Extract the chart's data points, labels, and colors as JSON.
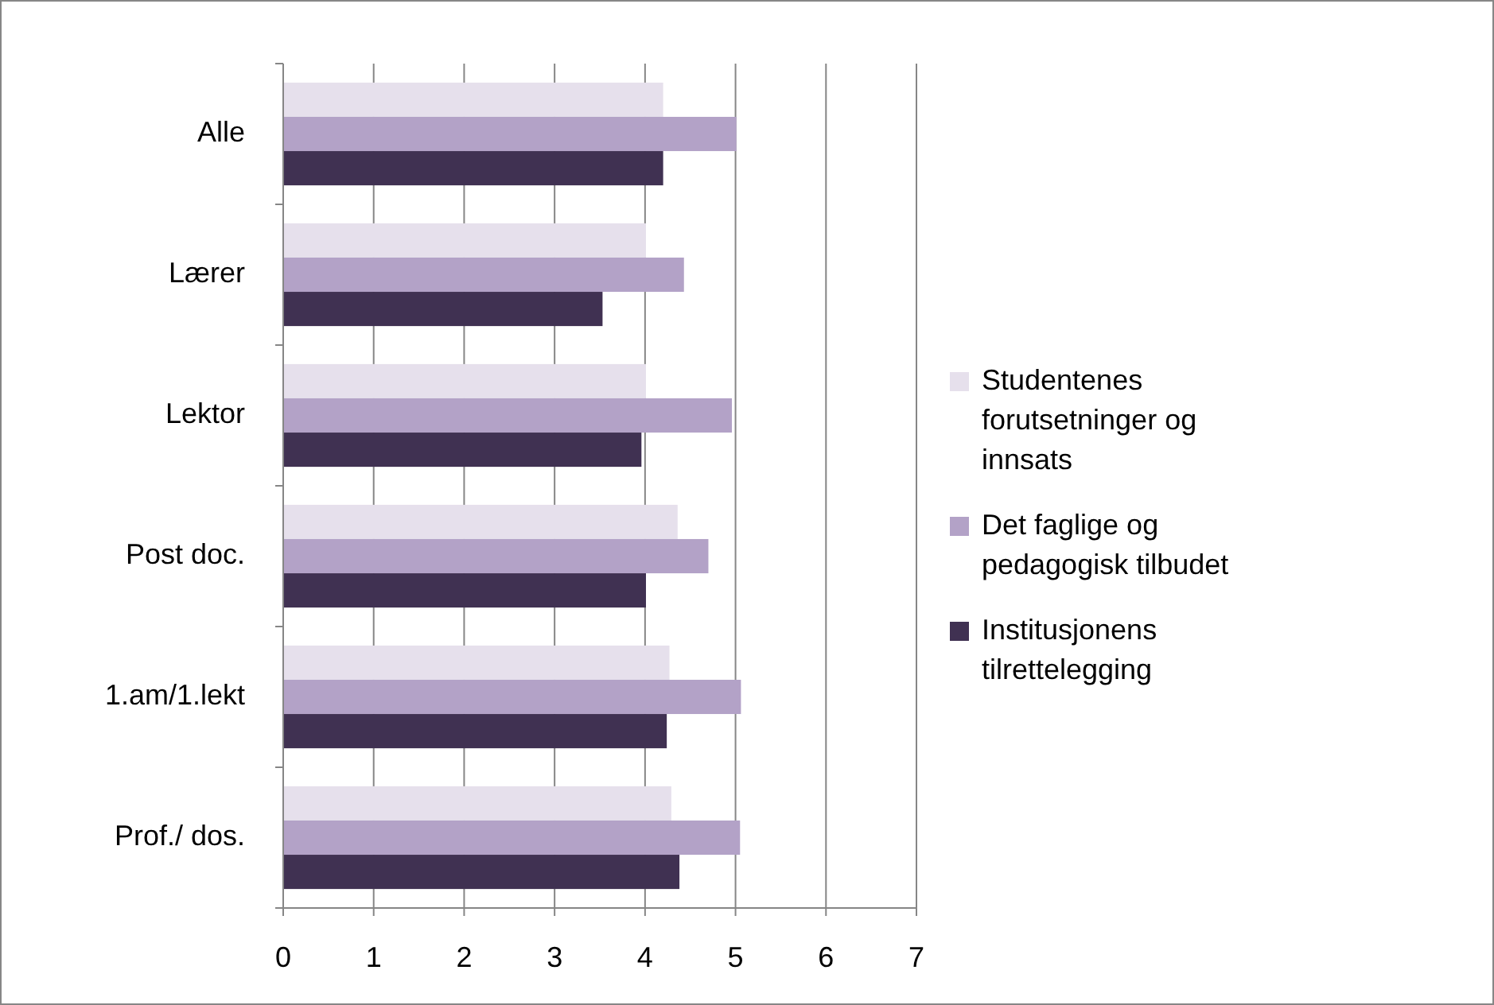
{
  "chart_data": {
    "type": "bar",
    "orientation": "horizontal",
    "categories": [
      "Alle",
      "Lærer",
      "Lektor",
      "Post doc.",
      "1.am/1.lekt",
      "Prof./ dos."
    ],
    "series": [
      {
        "name": "Studentenes forutsetninger og innsats",
        "color": "#e6e0ec",
        "values": [
          4.2,
          4.01,
          4.01,
          4.36,
          4.27,
          4.29
        ]
      },
      {
        "name": "Det faglige og pedagogisk tilbudet",
        "color": "#b3a2c7",
        "values": [
          5.01,
          4.43,
          4.96,
          4.7,
          5.06,
          5.05
        ]
      },
      {
        "name": "Institusjonens tilrettelegging",
        "color": "#403152",
        "values": [
          4.2,
          3.53,
          3.96,
          4.01,
          4.24,
          4.38
        ]
      }
    ],
    "xlim": [
      0,
      7
    ],
    "xticks": [
      0,
      1,
      2,
      3,
      4,
      5,
      6,
      7
    ],
    "grid": "x",
    "legend": "right"
  }
}
